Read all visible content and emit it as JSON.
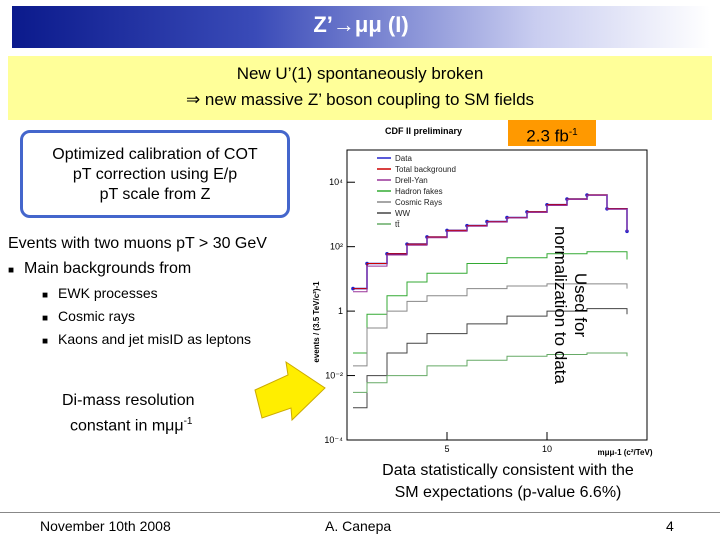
{
  "title": "Z’→μμ (I)",
  "banner": {
    "line1": "New U’(1) spontaneously broken",
    "line2": "⇒ new massive Z’ boson coupling to SM fields"
  },
  "lumi": {
    "value": "2.3 fb",
    "exp": "-1"
  },
  "calibration": {
    "line1": "Optimized calibration of COT",
    "line2": "pT correction using E/p",
    "line3": "pT scale from Z"
  },
  "selection": "Events with two muons pT > 30 GeV",
  "backgrounds_heading": "Main backgrounds from",
  "backgrounds": [
    "EWK processes",
    "Cosmic rays",
    "Kaons and jet misID as leptons"
  ],
  "resolution": {
    "line1": "Di-mass resolution",
    "line2": "constant in mμμ",
    "exp": "-1"
  },
  "normalization_note": "Used for normalization to data",
  "conclusion": {
    "line1": "Data statistically consistent with the",
    "line2": "SM expectations (p-value 6.6%)"
  },
  "footer": {
    "date": "November 10th 2008",
    "author": "A. Canepa",
    "page": "4"
  },
  "chart_data": {
    "type": "line",
    "title": "CDF II preliminary",
    "xlabel": "mμμ-1 (c²/TeV)",
    "ylabel": "events / (3.5 TeV/c²)-1",
    "y_scale": "log",
    "ylim": [
      0.0001,
      100000
    ],
    "xlim": [
      0,
      15
    ],
    "x_ticks": [
      "5",
      "10"
    ],
    "y_ticks": [
      "10⁻⁴",
      "10⁻²",
      "1",
      "10²",
      "10⁴"
    ],
    "legend": [
      "Data",
      "Total background",
      "Drell-Yan",
      "Hadron fakes",
      "Cosmic Rays",
      "WW",
      "tt̄"
    ],
    "legend_position": "top-right",
    "series": [
      {
        "name": "Data",
        "color": "#2222cc",
        "x": [
          0.3,
          1,
          2,
          3,
          4,
          5,
          6,
          7,
          8,
          9,
          10,
          11,
          12,
          13,
          14
        ],
        "y": [
          5,
          30,
          60,
          120,
          200,
          320,
          450,
          600,
          800,
          1200,
          2000,
          3000,
          4000,
          1500,
          300
        ]
      },
      {
        "name": "Total background",
        "color": "#cc0000",
        "x": [
          0.3,
          1,
          2,
          3,
          4,
          5,
          6,
          7,
          8,
          9,
          10,
          11,
          12,
          13,
          14
        ],
        "y": [
          5,
          30,
          60,
          120,
          200,
          320,
          450,
          600,
          800,
          1200,
          2000,
          3000,
          4000,
          1500,
          300
        ]
      },
      {
        "name": "Drell-Yan",
        "color": "#993399",
        "x": [
          0.3,
          1,
          2,
          3,
          4,
          5,
          6,
          7,
          8,
          9,
          10,
          11,
          12,
          13,
          14
        ],
        "y": [
          4,
          25,
          55,
          110,
          190,
          300,
          430,
          580,
          780,
          1150,
          1900,
          2900,
          3900,
          1450,
          290
        ]
      },
      {
        "name": "Hadron fakes",
        "color": "#33aa33",
        "x": [
          0.3,
          1,
          2,
          3,
          4,
          6,
          8,
          10,
          12,
          14
        ],
        "y": [
          0.05,
          0.8,
          3,
          8,
          15,
          30,
          45,
          60,
          70,
          40
        ]
      },
      {
        "name": "Cosmic Rays",
        "color": "#888888",
        "x": [
          0.3,
          1,
          2,
          3,
          4,
          6,
          8,
          10,
          12,
          14
        ],
        "y": [
          0.02,
          0.3,
          1,
          2,
          3,
          5,
          6,
          7,
          7,
          5
        ]
      },
      {
        "name": "WW",
        "color": "#444444",
        "x": [
          0.3,
          1,
          2,
          3,
          4,
          6,
          8,
          10,
          12,
          14
        ],
        "y": [
          0.001,
          0.01,
          0.05,
          0.1,
          0.2,
          0.4,
          0.7,
          1,
          1.2,
          0.8
        ]
      },
      {
        "name": "tt̄",
        "color": "#66aa66",
        "x": [
          0.3,
          1,
          2,
          4,
          6,
          8,
          10,
          12,
          14
        ],
        "y": [
          0.003,
          0.006,
          0.01,
          0.02,
          0.03,
          0.04,
          0.045,
          0.05,
          0.04
        ]
      }
    ]
  }
}
